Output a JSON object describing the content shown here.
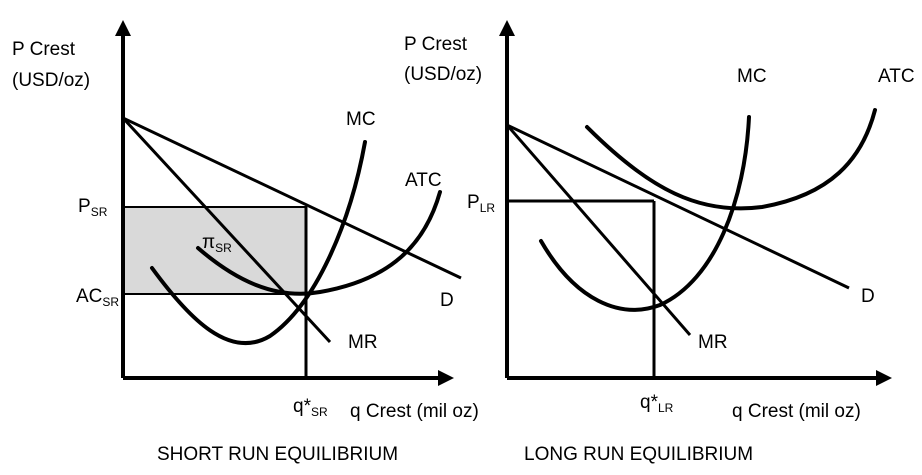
{
  "short_run": {
    "y_axis_line1": "P Crest",
    "y_axis_line2": "(USD/oz)",
    "x_axis": "q Crest (mil oz)",
    "price_main": "P",
    "price_sub": "SR",
    "ac_main": "AC",
    "ac_sub": "SR",
    "profit_main": "π",
    "profit_sub": "SR",
    "q_main": "q*",
    "q_sub": "SR",
    "mc": "MC",
    "atc": "ATC",
    "demand": "D",
    "mr": "MR",
    "caption": "SHORT RUN EQUILIBRIUM"
  },
  "long_run": {
    "y_axis_line1": "P Crest",
    "y_axis_line2": "(USD/oz)",
    "x_axis": "q Crest (mil oz)",
    "price_main": "P",
    "price_sub": "LR",
    "q_main": "q*",
    "q_sub": "LR",
    "mc": "MC",
    "atc": "ATC",
    "demand": "D",
    "mr": "MR",
    "caption": "LONG RUN EQUILIBRIUM"
  },
  "colors": {
    "profit_fill": "#d9d9d9",
    "ink": "#000000"
  }
}
